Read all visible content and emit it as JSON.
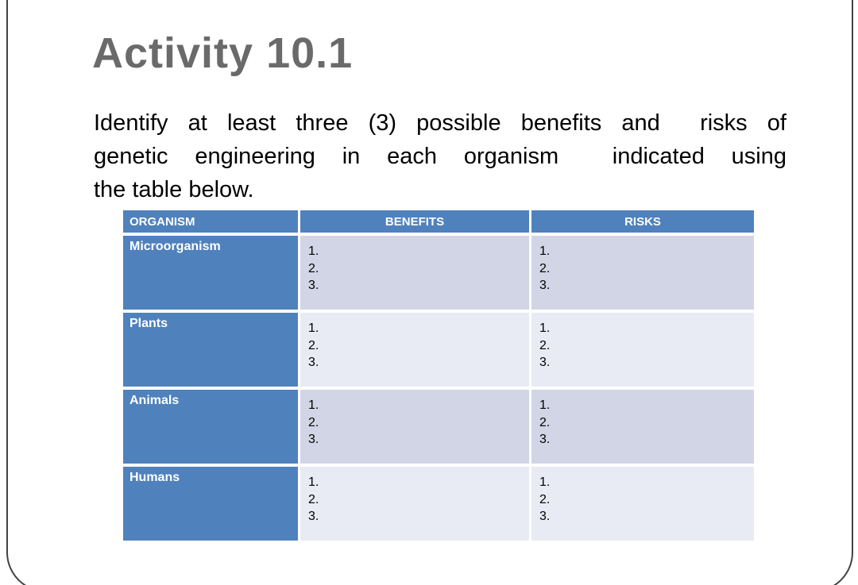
{
  "slide": {
    "title": "Activity 10.1",
    "body_lines": [
      "Identify at least three (3) possible benefits and  risks of",
      "genetic engineering in each organism  indicated using",
      "the table below."
    ]
  },
  "table": {
    "columns": [
      "ORGANISM",
      "BENEFITS",
      "RISKS"
    ],
    "rows": [
      {
        "organism": "Microorganism",
        "benefits": [
          "1.",
          "2.",
          "3."
        ],
        "risks": [
          "1.",
          "2.",
          "3."
        ]
      },
      {
        "organism": "Plants",
        "benefits": [
          "1.",
          "2.",
          "3."
        ],
        "risks": [
          "1.",
          "2.",
          "3."
        ]
      },
      {
        "organism": "Animals",
        "benefits": [
          "1.",
          "2.",
          "3."
        ],
        "risks": [
          "1.",
          "2.",
          "3."
        ]
      },
      {
        "organism": "Humans",
        "benefits": [
          "1.",
          "2.",
          "3."
        ],
        "risks": [
          "1.",
          "2.",
          "3."
        ]
      }
    ]
  },
  "colors": {
    "header_blue": "#4F81BD",
    "band_dark": "#D2D5E5",
    "band_light": "#E9EBF4",
    "title_gray": "#6A6A6A",
    "body_black": "#000000",
    "frame_gray": "#424242"
  }
}
